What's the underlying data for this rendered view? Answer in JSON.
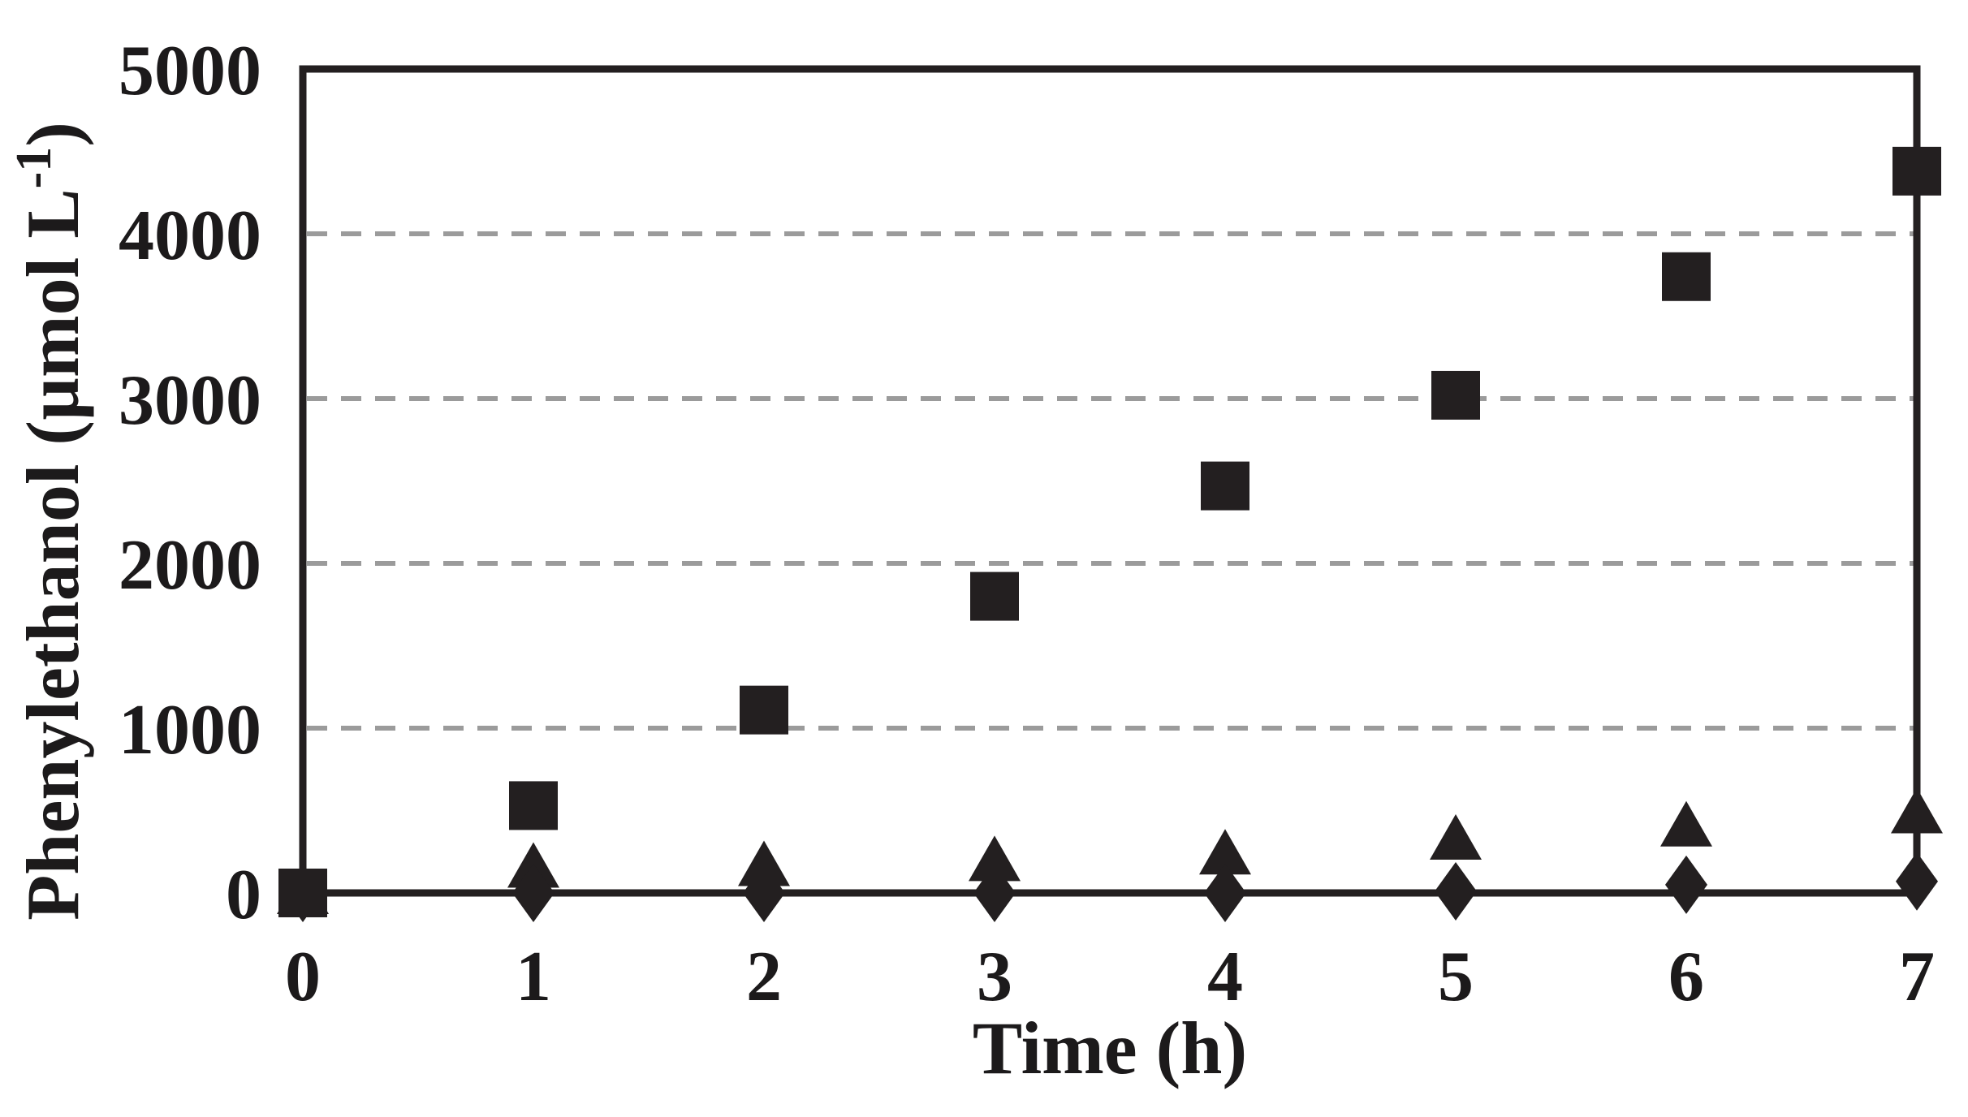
{
  "chart_data": {
    "type": "scatter",
    "title": "",
    "xlabel": "Time (h)",
    "ylabel": "Phenylethanol (µmol L-1)",
    "ylabel_parts": {
      "prefix": "Phenylethanol (µmol L",
      "superscript": "-1",
      "suffix": ")"
    },
    "x": [
      0,
      1,
      2,
      3,
      4,
      5,
      6,
      7
    ],
    "xlim": [
      0,
      7
    ],
    "ylim": [
      0,
      5000
    ],
    "xticks": [
      "0",
      "1",
      "2",
      "3",
      "4",
      "5",
      "6",
      "7"
    ],
    "ytick_values": [
      0,
      1000,
      2000,
      3000,
      4000,
      5000
    ],
    "yticks": [
      "0",
      "1000",
      "2000",
      "3000",
      "4000",
      "5000"
    ],
    "gridlines_y": [
      1000,
      2000,
      3000,
      4000
    ],
    "grid_style": "dashed",
    "legend": "none",
    "series": [
      {
        "name": "triangle series",
        "marker": "triangle-up",
        "values": [
          0,
          160,
          170,
          200,
          240,
          330,
          410,
          490
        ]
      },
      {
        "name": "diamond series",
        "marker": "diamond",
        "values": [
          0,
          0,
          0,
          0,
          0,
          10,
          50,
          70
        ]
      },
      {
        "name": "square series",
        "marker": "square",
        "values": [
          0,
          530,
          1110,
          1800,
          2470,
          3020,
          3740,
          4380
        ]
      }
    ],
    "colors": {
      "ink": "#231f20",
      "grid": "#9b9b9b",
      "background": "#ffffff"
    }
  }
}
